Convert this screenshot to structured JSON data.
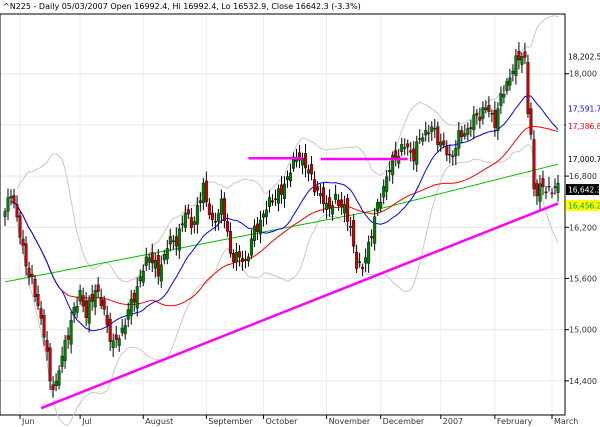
{
  "chart_data": {
    "type": "candlestick",
    "title": "^N225 - Daily 05/03/2007 Open 16992.4, Hi 16992.4, Lo 16532.9, Close 16642.3 (-3.3%)",
    "ylim": [
      14000,
      18700
    ],
    "y_ticks": [
      {
        "value": 18000,
        "label": "18,000"
      },
      {
        "value": 17400,
        "label": "17,400"
      },
      {
        "value": 16800,
        "label": "16,800"
      },
      {
        "value": 16200,
        "label": "16,200"
      },
      {
        "value": 15600,
        "label": "15,600"
      },
      {
        "value": 15000,
        "label": "15,000"
      },
      {
        "value": 14400,
        "label": "14,400"
      }
    ],
    "x_labels": [
      {
        "index": 5,
        "label": "Jun"
      },
      {
        "index": 25,
        "label": "Jul"
      },
      {
        "index": 46,
        "label": "August"
      },
      {
        "index": 67,
        "label": "September"
      },
      {
        "index": 86,
        "label": "October"
      },
      {
        "index": 107,
        "label": "November"
      },
      {
        "index": 125,
        "label": "December"
      },
      {
        "index": 145,
        "label": "2007"
      },
      {
        "index": 163,
        "label": "February"
      },
      {
        "index": 182,
        "label": "March"
      }
    ],
    "n_bars": 185,
    "price_anchors": [
      [
        0,
        16350
      ],
      [
        2,
        16650
      ],
      [
        5,
        16100
      ],
      [
        8,
        15650
      ],
      [
        11,
        15300
      ],
      [
        13,
        14950
      ],
      [
        15,
        14400
      ],
      [
        17,
        14350
      ],
      [
        20,
        14850
      ],
      [
        23,
        15200
      ],
      [
        25,
        15450
      ],
      [
        27,
        15150
      ],
      [
        30,
        15500
      ],
      [
        33,
        15200
      ],
      [
        36,
        14800
      ],
      [
        39,
        15000
      ],
      [
        42,
        15300
      ],
      [
        45,
        15600
      ],
      [
        48,
        15900
      ],
      [
        51,
        15650
      ],
      [
        54,
        16000
      ],
      [
        57,
        16050
      ],
      [
        60,
        16350
      ],
      [
        63,
        16250
      ],
      [
        66,
        16700
      ],
      [
        69,
        16200
      ],
      [
        72,
        16500
      ],
      [
        75,
        15900
      ],
      [
        77,
        15850
      ],
      [
        80,
        15800
      ],
      [
        83,
        16150
      ],
      [
        86,
        16350
      ],
      [
        89,
        16550
      ],
      [
        92,
        16600
      ],
      [
        95,
        16900
      ],
      [
        98,
        17050
      ],
      [
        101,
        16850
      ],
      [
        103,
        16700
      ],
      [
        105,
        16550
      ],
      [
        107,
        16450
      ],
      [
        110,
        16500
      ],
      [
        113,
        16450
      ],
      [
        115,
        16150
      ],
      [
        117,
        15800
      ],
      [
        119,
        15700
      ],
      [
        121,
        16000
      ],
      [
        123,
        16300
      ],
      [
        125,
        16550
      ],
      [
        127,
        16800
      ],
      [
        130,
        17050
      ],
      [
        133,
        17150
      ],
      [
        136,
        17050
      ],
      [
        139,
        17300
      ],
      [
        142,
        17350
      ],
      [
        145,
        17200
      ],
      [
        148,
        17000
      ],
      [
        151,
        17250
      ],
      [
        154,
        17350
      ],
      [
        157,
        17500
      ],
      [
        160,
        17600
      ],
      [
        163,
        17450
      ],
      [
        165,
        17700
      ],
      [
        167,
        17900
      ],
      [
        169,
        18050
      ],
      [
        171,
        18200
      ],
      [
        172,
        18250
      ],
      [
        173,
        18150
      ],
      [
        174,
        17550
      ],
      [
        175,
        17250
      ],
      [
        176,
        16650
      ]
    ],
    "support_line": {
      "x": [
        12,
        184
      ],
      "y": [
        14080,
        16480
      ]
    },
    "resistance_lines": [
      {
        "x": [
          81,
          99
        ],
        "y": 17010
      },
      {
        "x": [
          105,
          134
        ],
        "y": 17000
      }
    ],
    "series": [
      {
        "name": "sma20",
        "color": "#0000ff"
      },
      {
        "name": "sma50",
        "color": "#ff0000"
      },
      {
        "name": "sma200",
        "color": "#00c000"
      },
      {
        "name": "bollinger",
        "color": "#c8c8c8"
      }
    ],
    "price_labels": [
      {
        "value": 18202.5,
        "label": "18,202.5",
        "bg": "#ffffff",
        "fg": "#000000"
      },
      {
        "value": 17591.7,
        "label": "17,591.7",
        "bg": "#ffffff",
        "fg": "#0000ff"
      },
      {
        "value": 17386.8,
        "label": "17,386.8",
        "bg": "#ffffff",
        "fg": "#ff0000"
      },
      {
        "value": 17000.7,
        "label": "17,000.7",
        "bg": "#ffffff",
        "fg": "#000000"
      },
      {
        "value": 16642.3,
        "label": "16,642.3",
        "bg": "#000000",
        "fg": "#ffffff"
      },
      {
        "value": 16456.2,
        "label": "16,456.2",
        "bg": "#ffff00",
        "fg": "#00a000"
      }
    ]
  }
}
